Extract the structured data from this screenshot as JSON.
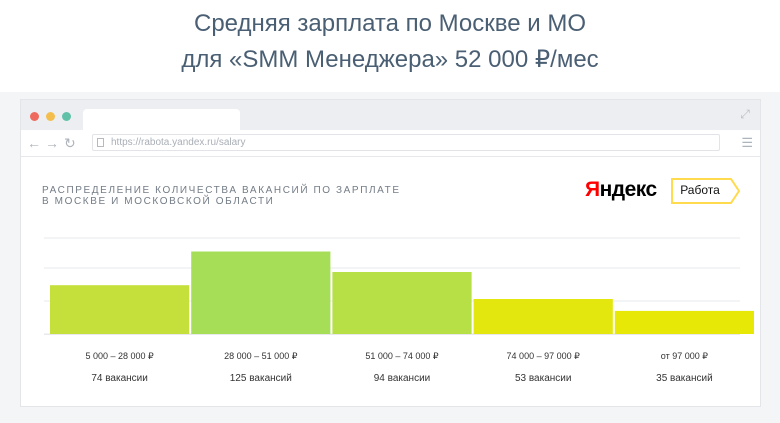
{
  "headline": {
    "line1": "Средняя зарплата по Москве и МО",
    "line2": "для «SMM Менеджера» 52 000 ₽/мес"
  },
  "browser": {
    "url": "https://rabota.yandex.ru/salary"
  },
  "chart_heading": {
    "line1": "РАСПРЕДЕЛЕНИЕ КОЛИЧЕСТВА ВАКАНСИЙ ПО ЗАРПЛАТЕ",
    "line2": "В МОСКВЕ И МОСКОВСКОЙ ОБЛАСТИ"
  },
  "brand": {
    "name_first": "Я",
    "name_rest": "ндекс",
    "badge_label": "Работа",
    "badge_color": "#ffdb4d"
  },
  "chart_data": {
    "type": "bar",
    "title": "",
    "xlabel": "",
    "ylabel": "",
    "ylim": [
      0,
      150
    ],
    "grid": true,
    "categories": [
      "5 000 – 28 000 ₽",
      "28 000 – 51 000 ₽",
      "51 000 – 74 000 ₽",
      "74 000 – 97 000 ₽",
      "от 97 000 ₽"
    ],
    "values": [
      74,
      125,
      94,
      53,
      35
    ],
    "value_labels": [
      "74 вакансии",
      "125 вакансий",
      "94 вакансии",
      "53 вакансии",
      "35 вакансий"
    ],
    "colors": [
      "#c5e03b",
      "#a6df57",
      "#b6e045",
      "#e3e70d",
      "#e7e805"
    ]
  }
}
